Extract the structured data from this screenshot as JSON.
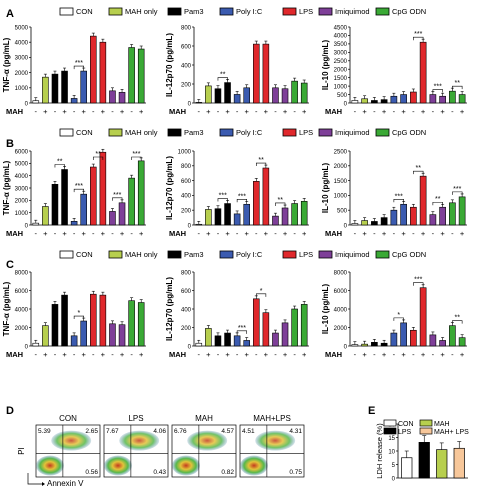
{
  "legend": [
    {
      "label": "CON",
      "color": "#ffffff"
    },
    {
      "label": "MAH only",
      "color": "#b7cf4e"
    },
    {
      "label": "Pam3",
      "color": "#000000"
    },
    {
      "label": "Poly I:C",
      "color": "#3b5bb0"
    },
    {
      "label": "LPS",
      "color": "#e0282c"
    },
    {
      "label": "Imiquimod",
      "color": "#7e3f98"
    },
    {
      "label": "CpG ODN",
      "color": "#3aa935"
    }
  ],
  "mah_label": "MAH",
  "mah_signs": [
    "-",
    "+",
    "-",
    "+",
    "-",
    "+",
    "-",
    "+",
    "-",
    "+",
    "-",
    "+"
  ],
  "chart_data": [
    {
      "panel": "A",
      "type": "bar",
      "ylabel": "TNF-α (pg/mL)",
      "ylim": [
        0,
        5000
      ],
      "yticks": [
        0,
        1000,
        2000,
        3000,
        4000,
        5000
      ],
      "values": [
        150,
        1700,
        1900,
        2100,
        300,
        2100,
        4400,
        4000,
        800,
        700,
        3650,
        3550
      ],
      "brackets": [
        {
          "from": 4,
          "to": 5,
          "label": "***"
        }
      ]
    },
    {
      "panel": "A",
      "type": "bar",
      "ylabel": "IL-12p70 (pg/mL)",
      "ylim": [
        0,
        800
      ],
      "yticks": [
        0,
        200,
        400,
        600,
        800
      ],
      "values": [
        5,
        180,
        150,
        215,
        90,
        160,
        620,
        620,
        160,
        150,
        230,
        210
      ],
      "brackets": [
        {
          "from": 2,
          "to": 3,
          "label": "**"
        }
      ]
    },
    {
      "panel": "A",
      "type": "bar",
      "ylabel": "IL-10 (pg/mL)",
      "ylim": [
        0,
        4500
      ],
      "yticks": [
        0,
        500,
        1000,
        1500,
        2000,
        2500,
        3000,
        3500,
        4000,
        4500
      ],
      "values": [
        150,
        250,
        150,
        200,
        400,
        500,
        650,
        3600,
        500,
        400,
        700,
        500
      ],
      "brackets": [
        {
          "from": 6,
          "to": 7,
          "label": "***"
        },
        {
          "from": 8,
          "to": 9,
          "label": "***"
        },
        {
          "from": 10,
          "to": 11,
          "label": "**"
        }
      ]
    },
    {
      "panel": "B",
      "type": "bar",
      "ylabel": "TNF-α (pg/mL)",
      "ylim": [
        0,
        6000
      ],
      "yticks": [
        0,
        1000,
        2000,
        3000,
        4000,
        5000,
        6000
      ],
      "values": [
        150,
        1500,
        3300,
        4500,
        300,
        2500,
        4700,
        5900,
        1100,
        1800,
        3800,
        5200
      ],
      "brackets": [
        {
          "from": 2,
          "to": 3,
          "label": "**"
        },
        {
          "from": 4,
          "to": 5,
          "label": "***"
        },
        {
          "from": 6,
          "to": 7,
          "label": "**"
        },
        {
          "from": 8,
          "to": 9,
          "label": "***"
        },
        {
          "from": 10,
          "to": 11,
          "label": "***"
        }
      ]
    },
    {
      "panel": "B",
      "type": "bar",
      "ylabel": "IL-12p70 (pg/mL)",
      "ylim": [
        0,
        1000
      ],
      "yticks": [
        0,
        200,
        400,
        600,
        800,
        1000
      ],
      "values": [
        10,
        210,
        220,
        290,
        150,
        280,
        590,
        770,
        120,
        230,
        290,
        320
      ],
      "brackets": [
        {
          "from": 2,
          "to": 3,
          "label": "***"
        },
        {
          "from": 4,
          "to": 5,
          "label": "***"
        },
        {
          "from": 6,
          "to": 7,
          "label": "**"
        },
        {
          "from": 8,
          "to": 9,
          "label": "**"
        }
      ]
    },
    {
      "panel": "B",
      "type": "bar",
      "ylabel": "IL-10 (pg/mL)",
      "ylim": [
        0,
        2500
      ],
      "yticks": [
        0,
        500,
        1000,
        1500,
        2000,
        2500
      ],
      "values": [
        50,
        150,
        120,
        250,
        500,
        700,
        600,
        1650,
        350,
        600,
        750,
        950
      ],
      "brackets": [
        {
          "from": 4,
          "to": 5,
          "label": "***"
        },
        {
          "from": 6,
          "to": 7,
          "label": "**"
        },
        {
          "from": 8,
          "to": 9,
          "label": "**"
        },
        {
          "from": 10,
          "to": 11,
          "label": "***"
        }
      ]
    },
    {
      "panel": "C",
      "type": "bar",
      "ylabel": "TNF-α (pg/mL)",
      "ylim": [
        0,
        8000
      ],
      "yticks": [
        0,
        2000,
        4000,
        6000,
        8000
      ],
      "values": [
        300,
        2200,
        4500,
        5500,
        1100,
        2700,
        5600,
        5500,
        2400,
        2300,
        4900,
        4700
      ],
      "brackets": [
        {
          "from": 4,
          "to": 5,
          "label": "*"
        }
      ]
    },
    {
      "panel": "C",
      "type": "bar",
      "ylabel": "IL-12p70 (pg/mL)",
      "ylim": [
        0,
        800
      ],
      "yticks": [
        0,
        200,
        400,
        600,
        800
      ],
      "values": [
        30,
        190,
        110,
        140,
        110,
        60,
        510,
        360,
        140,
        250,
        400,
        450
      ],
      "brackets": [
        {
          "from": 4,
          "to": 5,
          "label": "***"
        },
        {
          "from": 6,
          "to": 7,
          "label": "*"
        }
      ]
    },
    {
      "panel": "C",
      "type": "bar",
      "ylabel": "IL-10 (pg/mL)",
      "ylim": [
        0,
        8000
      ],
      "yticks": [
        0,
        2000,
        4000,
        6000,
        8000
      ],
      "values": [
        150,
        200,
        400,
        300,
        1400,
        2500,
        1700,
        6300,
        1200,
        600,
        2200,
        900
      ],
      "brackets": [
        {
          "from": 4,
          "to": 5,
          "label": "*"
        },
        {
          "from": 6,
          "to": 7,
          "label": "***"
        },
        {
          "from": 10,
          "to": 11,
          "label": "**"
        }
      ]
    },
    {
      "panel": "E",
      "type": "bar",
      "ylabel": "LDH release (%)",
      "ylim": [
        0,
        20
      ],
      "yticks": [
        0,
        5,
        10,
        15,
        20
      ],
      "categories": [
        "CON",
        "LPS",
        "MAH",
        "MAH+ LPS"
      ],
      "values": [
        7.5,
        13.2,
        10.5,
        11.0
      ],
      "colors": [
        "#ffffff",
        "#000000",
        "#b7cf4e",
        "#f7c79a"
      ]
    }
  ],
  "flow": {
    "panel": "D",
    "ylabel": "PI",
    "xlabel": "Annexin V",
    "plots": [
      {
        "title": "CON",
        "ul": "5.39",
        "ur": "2.65",
        "lr": "0.56"
      },
      {
        "title": "LPS",
        "ul": "7.67",
        "ur": "4.06",
        "lr": "0.43"
      },
      {
        "title": "MAH",
        "ul": "6.76",
        "ur": "4.57",
        "lr": "0.82"
      },
      {
        "title": "MAH+LPS",
        "ul": "4.51",
        "ur": "4.31",
        "lr": "0.75"
      }
    ]
  },
  "panel_letters": [
    "A",
    "B",
    "C",
    "D",
    "E"
  ]
}
